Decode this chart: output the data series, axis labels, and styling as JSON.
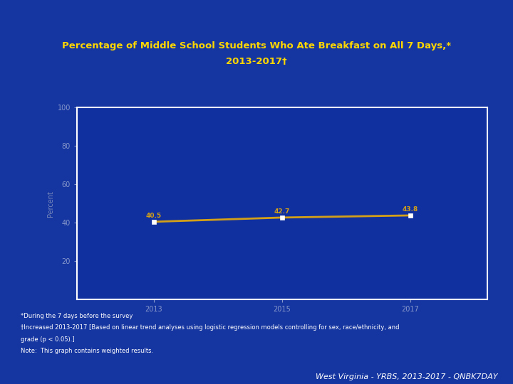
{
  "title_line1": "Percentage of Middle School Students Who Ate Breakfast on All 7 Days,*",
  "title_line2": "2013-2017†",
  "years": [
    2013,
    2015,
    2017
  ],
  "values": [
    40.5,
    42.7,
    43.8
  ],
  "ylabel": "Percent",
  "ylim": [
    0,
    100
  ],
  "yticks": [
    20,
    40,
    60,
    80,
    100
  ],
  "xticks": [
    2013,
    2015,
    2017
  ],
  "line_color": "#D4A017",
  "marker_color": "#FFFFFF",
  "bg_outer": "#1535a0",
  "bg_plot": "#1030a0",
  "axis_color": "#FFFFFF",
  "title_color": "#FFD700",
  "tick_color": "#8899CC",
  "ylabel_color": "#7788BB",
  "footnote1": "*During the 7 days before the survey",
  "footnote2": "†Increased 2013-2017 [Based on linear trend analyses using logistic regression models controlling for sex, race/ethnicity, and",
  "footnote3": "grade (p < 0.05).]",
  "footnote4": "Note:  This graph contains weighted results.",
  "watermark": "West Virginia - YRBS, 2013-2017 - QNBK7DAY",
  "data_labels": [
    "40.5",
    "42.7",
    "43.8"
  ],
  "label_fontsize": 6.5,
  "tick_fontsize": 7,
  "ylabel_fontsize": 7,
  "title_fontsize": 9.5,
  "footnote_fontsize": 6,
  "watermark_fontsize": 8
}
